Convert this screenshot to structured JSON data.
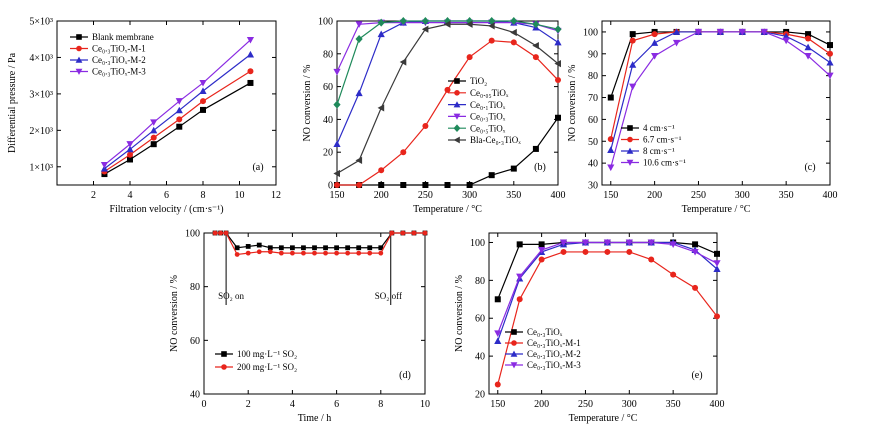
{
  "colors": {
    "black": "#000000",
    "red": "#e8251c",
    "blue": "#2d2cc8",
    "purple": "#8a2be2",
    "green": "#1f8a5b",
    "gray": "#3a3a3a"
  },
  "chart_data": [
    {
      "type": "line",
      "panel": "(a)",
      "xlabel": "Filtration velocity / (cm·s⁻¹)",
      "ylabel": "Differential pressure / Pa",
      "xlim": [
        0,
        12
      ],
      "ylim": [
        500,
        5000
      ],
      "xticks": [
        "2",
        "4",
        "6",
        "8",
        "10",
        "12"
      ],
      "yticks": [
        "1×10³",
        "2×10³",
        "3×10³",
        "4×10³",
        "5×10³"
      ],
      "legend_position": "top-left",
      "x": [
        2.6,
        4.0,
        5.3,
        6.7,
        8.0,
        10.6
      ],
      "series": [
        {
          "name": "Blank membrane",
          "color": "#000000",
          "marker": "square",
          "values": [
            800,
            1200,
            1620,
            2100,
            2560,
            3300
          ]
        },
        {
          "name": "Ce₀.₃TiOₓ-M-1",
          "color": "#e8251c",
          "marker": "circle",
          "values": [
            870,
            1330,
            1800,
            2300,
            2800,
            3620
          ]
        },
        {
          "name": "Ce₀.₃TiOₓ-M-2",
          "color": "#2d2cc8",
          "marker": "triangle",
          "values": [
            950,
            1480,
            2000,
            2550,
            3080,
            4080
          ]
        },
        {
          "name": "Ce₀.₃TiOₓ-M-3",
          "color": "#8a2be2",
          "marker": "tridown",
          "values": [
            1050,
            1620,
            2220,
            2800,
            3300,
            4480
          ]
        }
      ]
    },
    {
      "type": "line",
      "panel": "(b)",
      "xlabel": "Temperature / °C",
      "ylabel": "NO conversion / %",
      "xlim": [
        150,
        400
      ],
      "ylim": [
        0,
        100
      ],
      "xticks": [
        "150",
        "200",
        "250",
        "300",
        "350",
        "400"
      ],
      "yticks": [
        "0",
        "20",
        "40",
        "60",
        "80",
        "100"
      ],
      "legend_position": "bottom-right",
      "x": [
        150,
        175,
        200,
        225,
        250,
        275,
        300,
        325,
        350,
        375,
        400
      ],
      "series": [
        {
          "name": "TiO₂",
          "color": "#000000",
          "marker": "square",
          "values": [
            0,
            0,
            0,
            0,
            0,
            0,
            0,
            6,
            10,
            22,
            41
          ]
        },
        {
          "name": "Ce₀.₀₅TiOₓ",
          "color": "#e8251c",
          "marker": "circle",
          "values": [
            0,
            0,
            9,
            20,
            36,
            58,
            78,
            88,
            87,
            78,
            64
          ]
        },
        {
          "name": "Ce₀.₁TiOₓ",
          "color": "#2d2cc8",
          "marker": "triangle",
          "values": [
            25,
            56,
            92,
            99,
            100,
            100,
            100,
            100,
            99,
            96,
            87
          ]
        },
        {
          "name": "Ce₀.₃TiOₓ",
          "color": "#8a2be2",
          "marker": "tridown",
          "values": [
            69,
            98,
            99,
            99,
            99,
            99,
            99,
            99,
            99,
            98,
            94
          ]
        },
        {
          "name": "Ce₀.₅TiOₓ",
          "color": "#1f8a5b",
          "marker": "diamond",
          "values": [
            49,
            89,
            99,
            100,
            100,
            100,
            100,
            100,
            100,
            98,
            95
          ]
        },
        {
          "name": "Bla-Ce₀.₃TiOₓ",
          "color": "#3a3a3a",
          "marker": "lefttri",
          "values": [
            7,
            15,
            47,
            75,
            95,
            98,
            98,
            97,
            93,
            85,
            74
          ]
        }
      ]
    },
    {
      "type": "line",
      "panel": "(c)",
      "xlabel": "Temperature / °C",
      "ylabel": "NO conversion / %",
      "xlim": [
        140,
        400
      ],
      "ylim": [
        30,
        105
      ],
      "xticks": [
        "150",
        "200",
        "250",
        "300",
        "350",
        "400"
      ],
      "yticks": [
        "30",
        "40",
        "50",
        "60",
        "70",
        "80",
        "90",
        "100"
      ],
      "legend_position": "bottom-left",
      "x": [
        150,
        175,
        200,
        225,
        250,
        275,
        300,
        325,
        350,
        375,
        400
      ],
      "series": [
        {
          "name": "4 cm·s⁻¹",
          "color": "#000000",
          "marker": "square",
          "values": [
            70,
            99,
            100,
            100,
            100,
            100,
            100,
            100,
            100,
            99,
            94
          ]
        },
        {
          "name": "6.7 cm·s⁻¹",
          "color": "#e8251c",
          "marker": "circle",
          "values": [
            51,
            96,
            99,
            100,
            100,
            100,
            100,
            100,
            99,
            97,
            90
          ]
        },
        {
          "name": "8 cm·s⁻¹",
          "color": "#2d2cc8",
          "marker": "triangle",
          "values": [
            46,
            85,
            95,
            100,
            100,
            100,
            100,
            100,
            98,
            93,
            86
          ]
        },
        {
          "name": "10.6 cm·s⁻¹",
          "color": "#8a2be2",
          "marker": "tridown",
          "values": [
            38,
            75,
            89,
            95,
            100,
            100,
            100,
            100,
            96,
            89,
            80
          ]
        }
      ]
    },
    {
      "type": "line",
      "panel": "(d)",
      "xlabel": "Time / h",
      "ylabel": "NO conversion / %",
      "xlim": [
        0,
        10
      ],
      "ylim": [
        40,
        100
      ],
      "xticks": [
        "0",
        "2",
        "4",
        "6",
        "8",
        "10"
      ],
      "yticks": [
        "40",
        "60",
        "80",
        "100"
      ],
      "legend_position": "bottom-left",
      "annotations": [
        "SO₂ on",
        "SO₂ off"
      ],
      "x": [
        0.5,
        0.75,
        1.0,
        1.5,
        2.0,
        2.5,
        3.0,
        3.5,
        4.0,
        4.5,
        5.0,
        5.5,
        6.0,
        6.5,
        7.0,
        7.5,
        8.0,
        8.5,
        9.0,
        9.5,
        10.0
      ],
      "series": [
        {
          "name": "100 mg·L⁻¹ SO₂",
          "color": "#000000",
          "marker": "square",
          "values": [
            100,
            100,
            100,
            94.5,
            95,
            95.5,
            94.5,
            94.5,
            94.5,
            94.5,
            94.5,
            94.5,
            94.5,
            94.5,
            94.5,
            94.5,
            94.5,
            100,
            100,
            100,
            100
          ]
        },
        {
          "name": "200 mg·L⁻¹ SO₂",
          "color": "#e8251c",
          "marker": "circle",
          "values": [
            100,
            100,
            100,
            92,
            92.5,
            93,
            93,
            92.5,
            92.5,
            92.5,
            92.5,
            92.5,
            92.5,
            92.5,
            92.5,
            92.5,
            92.5,
            100,
            100,
            100,
            100
          ]
        }
      ]
    },
    {
      "type": "line",
      "panel": "(e)",
      "xlabel": "Temperature / °C",
      "ylabel": "NO conversion / %",
      "xlim": [
        140,
        400
      ],
      "ylim": [
        20,
        105
      ],
      "xticks": [
        "150",
        "200",
        "250",
        "300",
        "350",
        "400"
      ],
      "yticks": [
        "20",
        "40",
        "60",
        "80",
        "100"
      ],
      "legend_position": "bottom-left",
      "x": [
        150,
        175,
        200,
        225,
        250,
        275,
        300,
        325,
        350,
        375,
        400
      ],
      "series": [
        {
          "name": "Ce₀.₃TiOₓ",
          "color": "#000000",
          "marker": "square",
          "values": [
            70,
            99,
            99,
            100,
            100,
            100,
            100,
            100,
            100,
            99,
            94
          ]
        },
        {
          "name": "Ce₀.₃TiOₓ-M-1",
          "color": "#e8251c",
          "marker": "circle",
          "values": [
            25,
            70,
            91,
            95,
            95,
            95,
            95,
            91,
            83,
            76,
            61
          ]
        },
        {
          "name": "Ce₀.₃TiOₓ-M-2",
          "color": "#2d2cc8",
          "marker": "triangle",
          "values": [
            48,
            81,
            95,
            99,
            100,
            100,
            100,
            100,
            100,
            96,
            86
          ]
        },
        {
          "name": "Ce₀.₃TiOₓ-M-3",
          "color": "#8a2be2",
          "marker": "tridown",
          "values": [
            52,
            82,
            96,
            100,
            100,
            100,
            100,
            100,
            99,
            95,
            89
          ]
        }
      ]
    }
  ]
}
